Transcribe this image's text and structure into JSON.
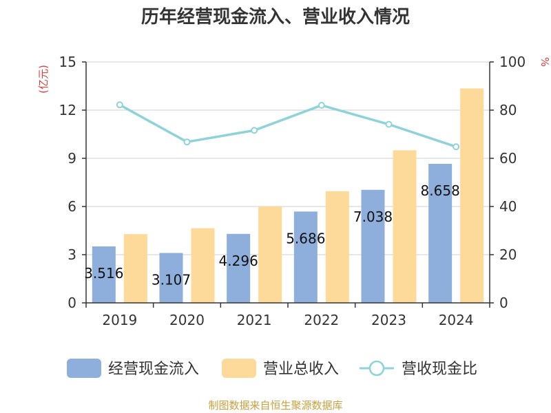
{
  "chart_data": {
    "type": "bar",
    "title": "历年经营现金流入、营业收入情况",
    "categories": [
      "2019",
      "2020",
      "2021",
      "2022",
      "2023",
      "2024"
    ],
    "series": [
      {
        "name": "经营现金流入",
        "kind": "bar",
        "axis": "left",
        "color": "#8eaedb",
        "values": [
          3.516,
          3.107,
          4.296,
          5.686,
          7.038,
          8.658
        ],
        "labels": [
          "3.516",
          "3.107",
          "4.296",
          "5.686",
          "7.038",
          "8.658"
        ]
      },
      {
        "name": "营业总收入",
        "kind": "bar",
        "axis": "left",
        "color": "#fdd99a",
        "values": [
          4.28,
          4.65,
          6.0,
          6.95,
          9.5,
          13.35
        ]
      },
      {
        "name": "营收现金比",
        "kind": "line",
        "axis": "right",
        "color": "#8dd3d9",
        "values": [
          82.2,
          66.8,
          71.6,
          82.0,
          74.1,
          64.8
        ]
      }
    ],
    "ylabel": "(亿元)",
    "y2label": "%",
    "ylim": [
      0,
      15
    ],
    "yticks": [
      "0",
      "3",
      "6",
      "9",
      "12",
      "15"
    ],
    "y2lim": [
      0,
      100
    ],
    "y2ticks": [
      "0",
      "20",
      "40",
      "60",
      "80",
      "100"
    ],
    "grid": true,
    "legend": "bottom"
  },
  "source": "制图数据来自恒生聚源数据库"
}
